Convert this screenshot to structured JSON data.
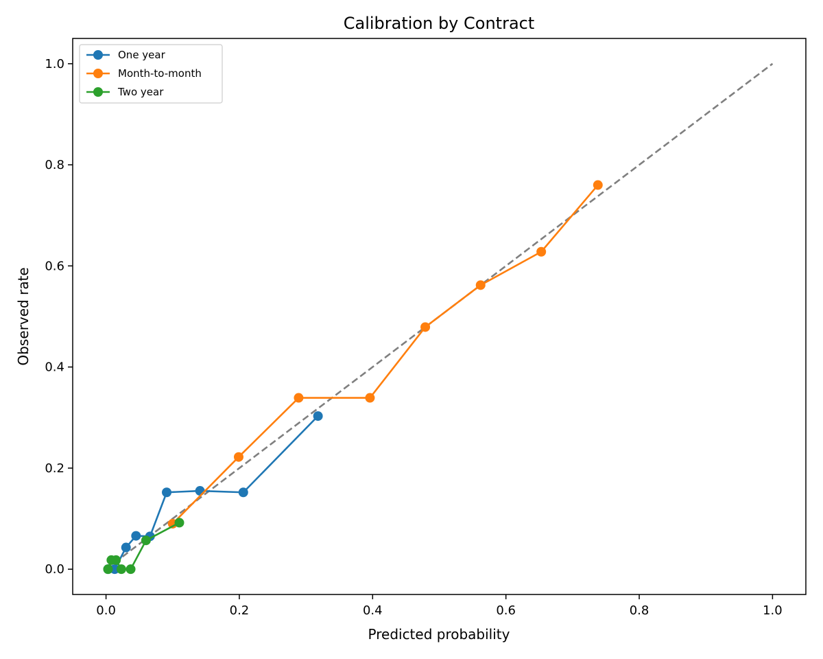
{
  "chart_data": {
    "type": "line",
    "title": "Calibration by Contract",
    "xlabel": "Predicted probability",
    "ylabel": "Observed rate",
    "xlim": [
      -0.05,
      1.05
    ],
    "ylim": [
      -0.05,
      1.05
    ],
    "xticks": [
      "0.0",
      "0.2",
      "0.4",
      "0.6",
      "0.8",
      "1.0"
    ],
    "yticks": [
      "0.0",
      "0.2",
      "0.4",
      "0.6",
      "0.8",
      "1.0"
    ],
    "grid": false,
    "legend_position": "top-left",
    "reference_line": {
      "style": "dashed",
      "color": "#7f7f7f",
      "x": [
        0,
        1
      ],
      "y": [
        0,
        1
      ]
    },
    "series": [
      {
        "name": "One year",
        "color": "#1f77b4",
        "x": [
          0.003,
          0.013,
          0.03,
          0.045,
          0.066,
          0.091,
          0.141,
          0.206,
          0.318
        ],
        "y": [
          0.0,
          0.0,
          0.043,
          0.066,
          0.065,
          0.152,
          0.155,
          0.152,
          0.303
        ]
      },
      {
        "name": "Month-to-month",
        "color": "#ff7f0e",
        "x": [
          0.1,
          0.199,
          0.289,
          0.396,
          0.479,
          0.562,
          0.653,
          0.738
        ],
        "y": [
          0.09,
          0.222,
          0.339,
          0.339,
          0.479,
          0.562,
          0.628,
          0.76
        ]
      },
      {
        "name": "Two year",
        "color": "#2ca02c",
        "x": [
          0.003,
          0.008,
          0.015,
          0.023,
          0.037,
          0.06,
          0.11
        ],
        "y": [
          0.0,
          0.018,
          0.018,
          0.0,
          0.0,
          0.057,
          0.092
        ]
      }
    ]
  }
}
